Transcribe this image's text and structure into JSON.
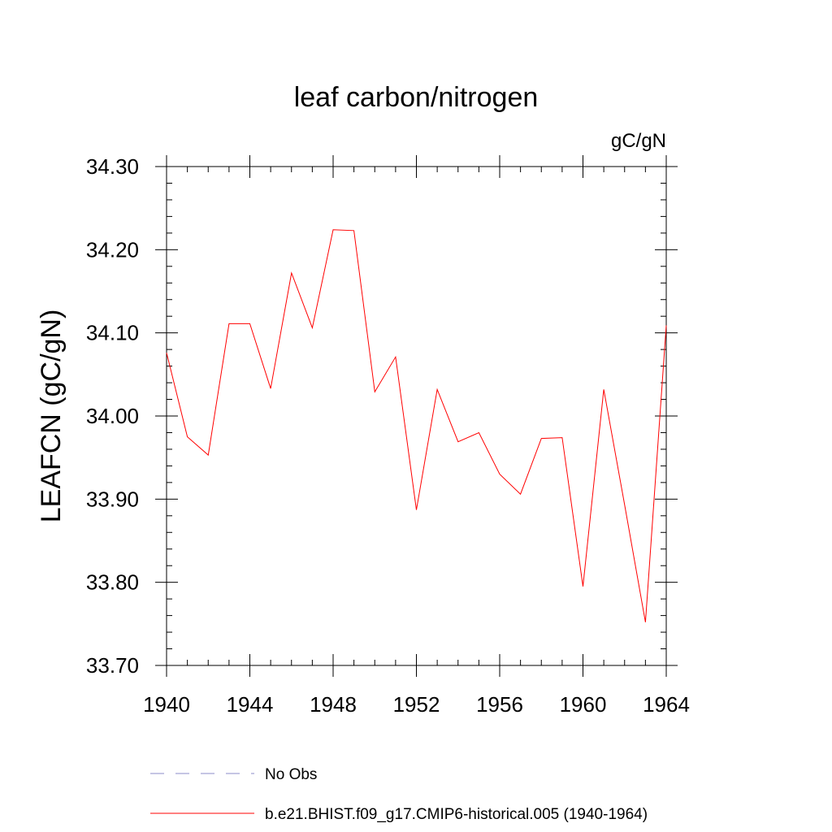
{
  "chart_data": {
    "type": "line",
    "title": "leaf carbon/nitrogen",
    "units_label": "gC/gN",
    "ylabel": "LEAFCN  (gC/gN)",
    "xlabel": "",
    "xlim": [
      1940,
      1964
    ],
    "ylim": [
      33.7,
      34.3
    ],
    "x_ticks": [
      1940,
      1944,
      1948,
      1952,
      1956,
      1960,
      1964
    ],
    "x_tick_labels": [
      "1940",
      "1944",
      "1948",
      "1952",
      "1956",
      "1960",
      "1964"
    ],
    "y_ticks": [
      33.7,
      33.8,
      33.9,
      34.0,
      34.1,
      34.2,
      34.3
    ],
    "y_tick_labels": [
      "33.70",
      "33.80",
      "33.90",
      "34.00",
      "34.10",
      "34.20",
      "34.30"
    ],
    "grid": false,
    "legend_placement": "bottom",
    "series": [
      {
        "name": "b.e21.BHIST.f09_g17.CMIP6-historical.005 (1940-1964)",
        "color": "#ff0000",
        "style": "solid",
        "x": [
          1940,
          1941,
          1942,
          1943,
          1944,
          1945,
          1946,
          1947,
          1948,
          1949,
          1950,
          1951,
          1952,
          1953,
          1954,
          1955,
          1956,
          1957,
          1958,
          1959,
          1960,
          1961,
          1962,
          1963,
          1964
        ],
        "values": [
          34.076,
          33.975,
          33.953,
          34.111,
          34.111,
          34.033,
          34.172,
          34.106,
          34.224,
          34.223,
          34.029,
          34.071,
          33.887,
          34.032,
          33.969,
          33.98,
          33.93,
          33.906,
          33.973,
          33.974,
          33.795,
          34.032,
          33.893,
          33.752,
          34.109
        ]
      }
    ],
    "legend": [
      {
        "label": "No Obs",
        "color": "#8c8cc8",
        "style": "dashed"
      },
      {
        "label": "b.e21.BHIST.f09_g17.CMIP6-historical.005 (1940-1964)",
        "color": "#ff0000",
        "style": "solid"
      }
    ]
  }
}
